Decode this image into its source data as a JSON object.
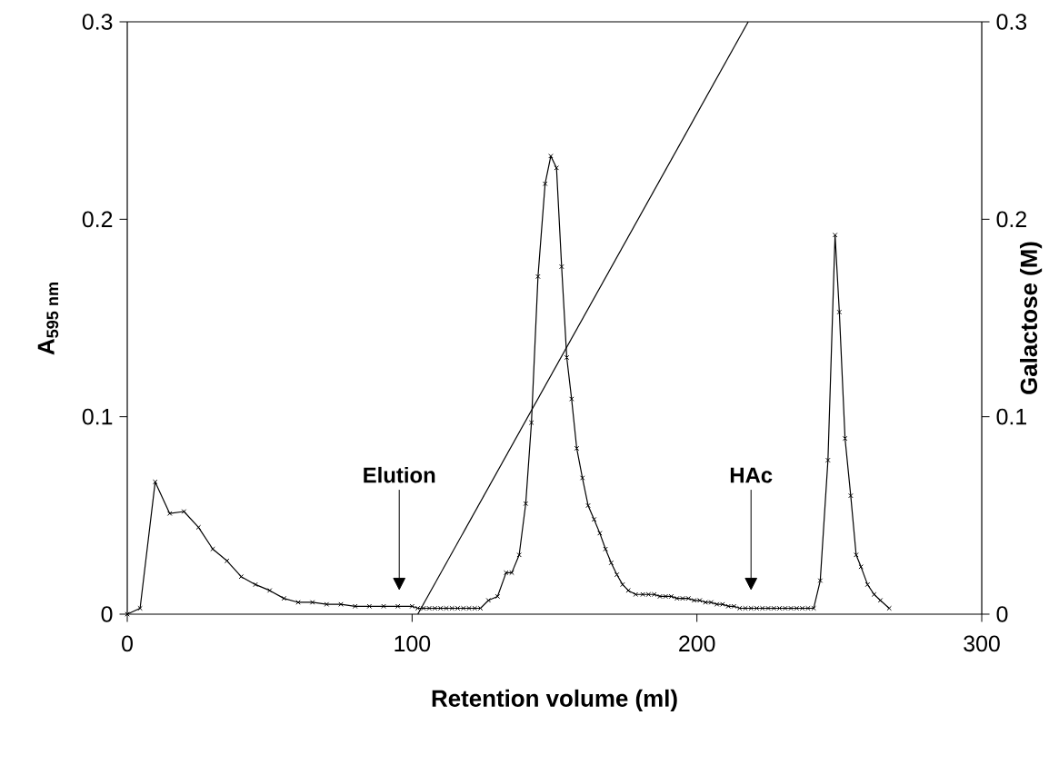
{
  "chart_data": {
    "type": "line",
    "xlabel": "Retention volume (ml)",
    "ylabel": "A$_{595 nm}$",
    "y2label": "Galactose (M)",
    "xlim": [
      0,
      300
    ],
    "xticks": [
      0,
      100,
      200,
      300
    ],
    "ylim": [
      0,
      0.3
    ],
    "yticks": [
      0,
      0.1,
      0.2,
      0.3
    ],
    "y2lim": [
      0,
      0.3
    ],
    "y2ticks": [
      0,
      0.1,
      0.2,
      0.3
    ],
    "series": [
      {
        "color": "#000000",
        "marker": "cross",
        "x": [
          0,
          4.5,
          9.8,
          14.9,
          19.9,
          25,
          30,
          35,
          40,
          45,
          50,
          55,
          60,
          65,
          70,
          75,
          80,
          85,
          90,
          95,
          100,
          102,
          104,
          106,
          108,
          110,
          112,
          114,
          116,
          118,
          120,
          122,
          124,
          126.8,
          130,
          133,
          135,
          137.6,
          139.9,
          141.9,
          144.2,
          146.7,
          148.7,
          150.7,
          152.5,
          154.3,
          156,
          157.8,
          159.8,
          161.8,
          163.9,
          165.9,
          167.9,
          169.9,
          171.9,
          173.9,
          175.9,
          178.5,
          181,
          183,
          185,
          187,
          189,
          191,
          193,
          195,
          197,
          199,
          201,
          203,
          205,
          207,
          209,
          211,
          213,
          215,
          217,
          219,
          221,
          223,
          225,
          227,
          229,
          231,
          233,
          235,
          237,
          239,
          241,
          243.3,
          246,
          248.5,
          250,
          252,
          254,
          255.9,
          257.6,
          259.9,
          262.2,
          264.4,
          267.5
        ],
        "values": [
          0,
          0.003,
          0.067,
          0.051,
          0.052,
          0.044,
          0.033,
          0.027,
          0.019,
          0.015,
          0.012,
          0.008,
          0.006,
          0.006,
          0.005,
          0.005,
          0.004,
          0.004,
          0.004,
          0.004,
          0.004,
          0.003,
          0.003,
          0.003,
          0.003,
          0.003,
          0.003,
          0.003,
          0.003,
          0.003,
          0.003,
          0.003,
          0.003,
          0.007,
          0.009,
          0.021,
          0.021,
          0.03,
          0.056,
          0.097,
          0.171,
          0.218,
          0.232,
          0.226,
          0.176,
          0.13,
          0.109,
          0.084,
          0.069,
          0.055,
          0.048,
          0.041,
          0.033,
          0.026,
          0.02,
          0.015,
          0.012,
          0.01,
          0.01,
          0.01,
          0.01,
          0.009,
          0.009,
          0.009,
          0.008,
          0.008,
          0.008,
          0.007,
          0.007,
          0.006,
          0.006,
          0.005,
          0.005,
          0.004,
          0.004,
          0.003,
          0.003,
          0.003,
          0.003,
          0.003,
          0.003,
          0.003,
          0.003,
          0.003,
          0.003,
          0.003,
          0.003,
          0.003,
          0.003,
          0.017,
          0.078,
          0.192,
          0.153,
          0.089,
          0.06,
          0.03,
          0.024,
          0.015,
          0.01,
          0.007,
          0.003
        ]
      },
      {
        "color": "#000000",
        "marker": "none",
        "axis": "y2",
        "x": [
          102,
          218
        ],
        "values": [
          0,
          0.3
        ]
      }
    ],
    "annotations": [
      "Elution",
      "HAc"
    ]
  }
}
